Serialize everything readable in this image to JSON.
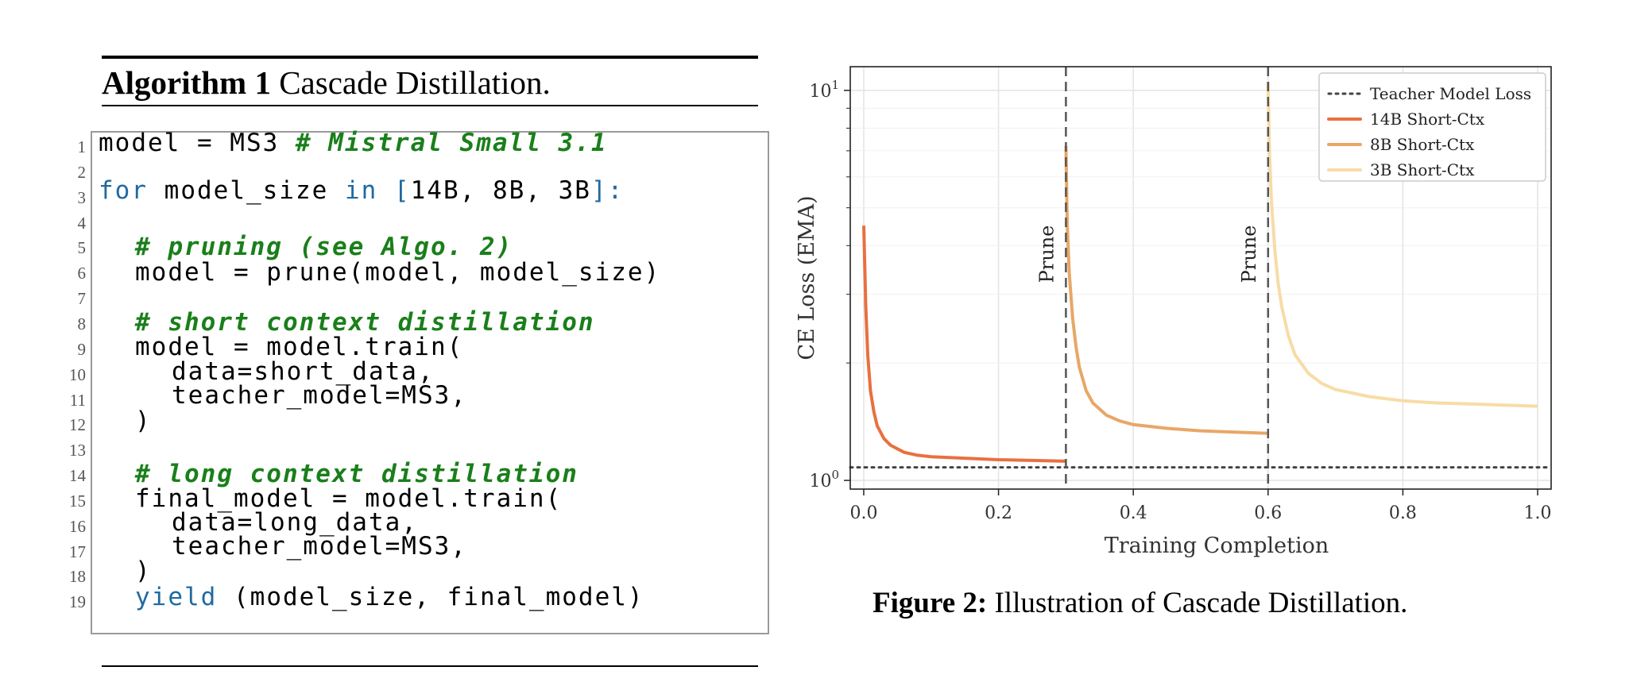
{
  "algorithm": {
    "label": "Algorithm 1",
    "title": "Cascade Distillation.",
    "line_numbers": [
      "1",
      "2",
      "3",
      "4",
      "5",
      "6",
      "7",
      "8",
      "9",
      "10",
      "11",
      "12",
      "13",
      "14",
      "15",
      "16",
      "17",
      "18",
      "19"
    ],
    "lines": {
      "l1_code": "model = MS3 ",
      "l1_comment": "# Mistral Small 3.1",
      "l3_for": "for",
      "l3_mid": " model_size ",
      "l3_in": "in",
      "l3_list": " [",
      "l3_items": "14B, 8B, 3B",
      "l3_end": "]:",
      "l5_comment": "# pruning (see Algo. 2)",
      "l6_code": "model = prune(model, model_size)",
      "l8_comment": "# short context distillation",
      "l9_code": "model = model.train(",
      "l10_code": "data=short_data,",
      "l11_code": "teacher_model=MS3,",
      "l12_code": ")",
      "l14_comment": "# long context distillation",
      "l15_code": "final_model = model.train(",
      "l16_code": "data=long_data,",
      "l17_code": "teacher_model=MS3,",
      "l18_code": ")",
      "l19_yield": "yield",
      "l19_rest": " (model_size, final_model)"
    }
  },
  "figure": {
    "caption_label": "Figure 2:",
    "caption_text": "Illustration of Cascade Distillation."
  },
  "chart_data": {
    "type": "line",
    "xlabel": "Training Completion",
    "ylabel": "CE Loss (EMA)",
    "yscale": "log",
    "xlim": [
      -0.02,
      1.02
    ],
    "ylim": [
      0.95,
      11.5
    ],
    "xticks": [
      "0.0",
      "0.2",
      "0.4",
      "0.6",
      "0.8",
      "1.0"
    ],
    "yticks": [
      "10^0",
      "10^1"
    ],
    "grid": true,
    "legend_position": "top-right",
    "vlines": [
      {
        "x": 0.3,
        "label": "Prune"
      },
      {
        "x": 0.6,
        "label": "Prune"
      }
    ],
    "hline": {
      "name": "Teacher Model Loss",
      "y": 1.08,
      "color": "#444444",
      "style": "dotted"
    },
    "series": [
      {
        "name": "14B Short-Ctx",
        "color": "#e8703f",
        "x": [
          0.0,
          0.003,
          0.006,
          0.01,
          0.015,
          0.02,
          0.03,
          0.04,
          0.06,
          0.08,
          0.1,
          0.15,
          0.2,
          0.25,
          0.3
        ],
        "y": [
          4.5,
          2.8,
          2.1,
          1.7,
          1.5,
          1.38,
          1.28,
          1.23,
          1.18,
          1.16,
          1.15,
          1.14,
          1.13,
          1.125,
          1.12
        ]
      },
      {
        "name": "8B Short-Ctx",
        "color": "#e8a766",
        "x": [
          0.3,
          0.302,
          0.305,
          0.31,
          0.315,
          0.32,
          0.33,
          0.34,
          0.36,
          0.38,
          0.4,
          0.45,
          0.5,
          0.55,
          0.6
        ],
        "y": [
          7.2,
          4.5,
          3.4,
          2.6,
          2.2,
          1.95,
          1.7,
          1.58,
          1.47,
          1.42,
          1.39,
          1.36,
          1.34,
          1.33,
          1.32
        ]
      },
      {
        "name": "3B Short-Ctx",
        "color": "#f7dca6",
        "x": [
          0.6,
          0.602,
          0.605,
          0.61,
          0.615,
          0.62,
          0.63,
          0.64,
          0.66,
          0.68,
          0.7,
          0.75,
          0.8,
          0.85,
          0.9,
          0.95,
          1.0
        ],
        "y": [
          10.5,
          7.0,
          5.2,
          3.9,
          3.2,
          2.8,
          2.35,
          2.1,
          1.88,
          1.77,
          1.71,
          1.64,
          1.6,
          1.58,
          1.57,
          1.56,
          1.55
        ]
      }
    ]
  }
}
